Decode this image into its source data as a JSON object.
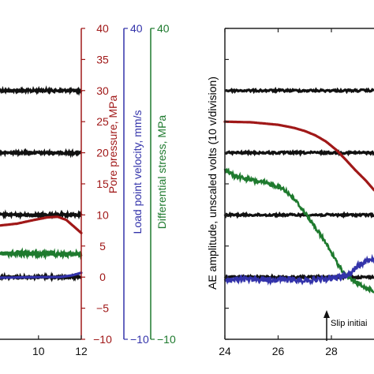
{
  "colors": {
    "black": "#111111",
    "pore": "#a01818",
    "velocity": "#3333aa",
    "stress": "#1e7a2e",
    "axis": "#222222"
  },
  "chart_data": [
    {
      "type": "line",
      "panel": "left",
      "x_ticks": [
        "10",
        "12"
      ],
      "y_axes": [
        {
          "name": "pore",
          "label": "Pore pressure, MPa",
          "ticks": [
            "40",
            "35",
            "30",
            "25",
            "20",
            "15",
            "10",
            "5",
            "0",
            "−5",
            "−10"
          ],
          "ylim": [
            -10,
            40
          ]
        },
        {
          "name": "velocity",
          "label": "Load point velocity, mm/s",
          "ticks": [
            "40",
            "−10"
          ],
          "ylim": [
            -10,
            40
          ]
        },
        {
          "name": "stress",
          "label": "Differential stress, MPa",
          "ticks": [
            "40",
            "−10"
          ],
          "ylim": [
            -10,
            40
          ]
        }
      ],
      "xlim": [
        8.2,
        12
      ],
      "series": [
        {
          "color": "black",
          "axis": "pore",
          "kind": "baseline",
          "x": [
            8.2,
            12
          ],
          "y": [
            30,
            30
          ]
        },
        {
          "color": "black",
          "axis": "pore",
          "kind": "baseline",
          "x": [
            8.2,
            12
          ],
          "y": [
            20,
            20
          ]
        },
        {
          "color": "black",
          "axis": "pore",
          "kind": "baseline",
          "x": [
            8.2,
            12
          ],
          "y": [
            10,
            10
          ]
        },
        {
          "color": "black",
          "axis": "pore",
          "kind": "baseline",
          "x": [
            8.2,
            12
          ],
          "y": [
            0,
            0
          ]
        },
        {
          "color": "pore",
          "axis": "pore",
          "x": [
            8.2,
            9.0,
            9.8,
            10.4,
            10.9,
            11.3,
            11.7,
            12.0
          ],
          "y": [
            8.3,
            8.6,
            9.2,
            9.6,
            9.7,
            9.2,
            8.0,
            7.1
          ]
        },
        {
          "color": "stress",
          "axis": "pore",
          "kind": "noisy",
          "x": [
            8.2,
            12
          ],
          "y": [
            3.8,
            3.7
          ]
        },
        {
          "color": "velocity",
          "axis": "pore",
          "x": [
            8.2,
            10.0,
            11.0,
            11.6,
            12.0
          ],
          "y": [
            -0.1,
            0.0,
            0.0,
            0.3,
            0.7
          ]
        }
      ]
    },
    {
      "type": "line",
      "panel": "right",
      "x_ticks": [
        "24",
        "26",
        "28"
      ],
      "y_axes": [
        {
          "name": "ae",
          "label": "AE amplitude, unscaled volts (10 v/division)",
          "ylim": [
            -10,
            40
          ]
        }
      ],
      "xlim": [
        24,
        29.6
      ],
      "annotation": {
        "text": "Slip initiai",
        "x": 27.2
      },
      "series": [
        {
          "color": "black",
          "axis": "ae",
          "kind": "baseline",
          "x": [
            24,
            29.6
          ],
          "y": [
            30,
            30
          ]
        },
        {
          "color": "black",
          "axis": "ae",
          "kind": "baseline",
          "x": [
            24,
            29.6
          ],
          "y": [
            20,
            20
          ]
        },
        {
          "color": "black",
          "axis": "ae",
          "kind": "baseline",
          "x": [
            24,
            29.6
          ],
          "y": [
            10,
            10
          ]
        },
        {
          "color": "black",
          "axis": "ae",
          "kind": "baseline",
          "x": [
            24,
            29.6
          ],
          "y": [
            0,
            0
          ]
        },
        {
          "color": "pore",
          "axis": "ae",
          "x": [
            24.0,
            25.0,
            26.0,
            26.6,
            27.0,
            27.4,
            27.8,
            28.2,
            28.6,
            28.9,
            29.3,
            29.6
          ],
          "y": [
            25.0,
            24.9,
            24.5,
            24.0,
            23.5,
            22.8,
            21.8,
            20.4,
            18.6,
            17.2,
            15.5,
            14.0
          ]
        },
        {
          "color": "stress",
          "axis": "ae",
          "kind": "noisy",
          "x": [
            24.0,
            24.3,
            24.8,
            25.3,
            25.8,
            26.2,
            26.6,
            27.0,
            27.4,
            27.8,
            28.2,
            28.5,
            28.9,
            29.2,
            29.6
          ],
          "y": [
            17.3,
            16.4,
            15.8,
            15.3,
            14.9,
            14.2,
            12.6,
            10.4,
            8.0,
            5.4,
            2.4,
            0.5,
            -0.8,
            -1.6,
            -2.2
          ]
        },
        {
          "color": "velocity",
          "axis": "ae",
          "kind": "noisy",
          "x": [
            24.0,
            26.0,
            27.0,
            27.8,
            28.3,
            28.7,
            29.0,
            29.3,
            29.6
          ],
          "y": [
            -0.4,
            -0.4,
            -0.5,
            -0.3,
            0.0,
            0.6,
            1.8,
            2.6,
            3.0
          ]
        }
      ]
    }
  ]
}
